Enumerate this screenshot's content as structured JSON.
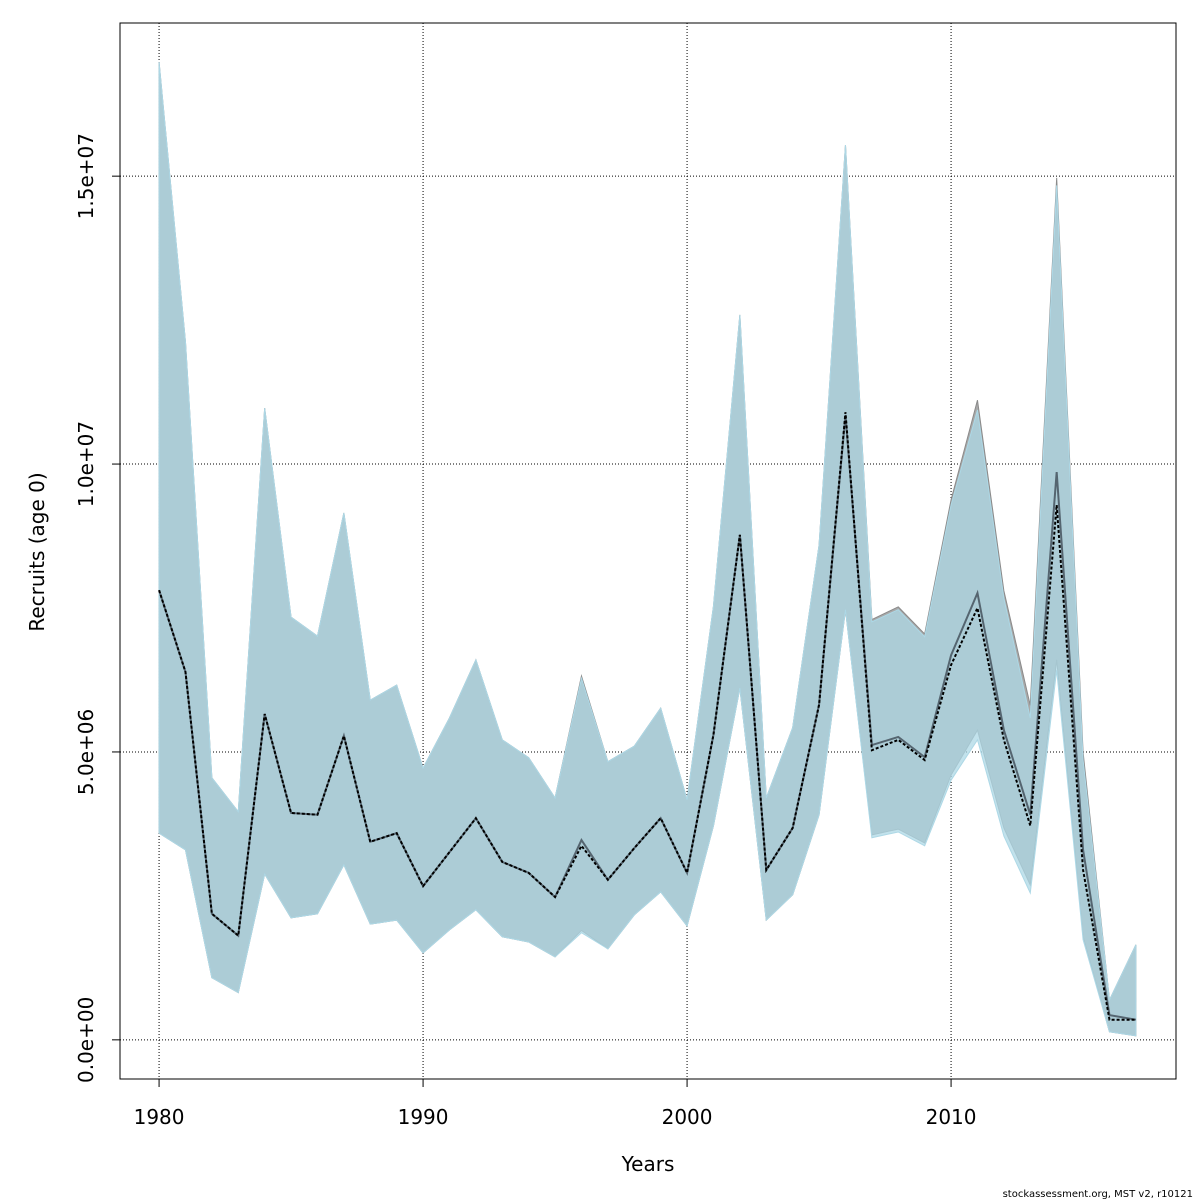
{
  "chart_data": {
    "type": "band-line",
    "xlabel": "Years",
    "ylabel": "Recruits (age 0)",
    "footer": "stockassessment.org, MST v2, r10121",
    "x": [
      1980,
      1981,
      1982,
      1983,
      1984,
      1985,
      1986,
      1987,
      1988,
      1989,
      1990,
      1991,
      1992,
      1993,
      1994,
      1995,
      1996,
      1997,
      1998,
      1999,
      2000,
      2001,
      2002,
      2003,
      2004,
      2005,
      2006,
      2007,
      2008,
      2009,
      2010,
      2011,
      2012,
      2013,
      2014,
      2015,
      2016,
      2017
    ],
    "xlim": [
      1978.52,
      2018.52
    ],
    "xticks": [
      1980,
      1990,
      2000,
      2010
    ],
    "ylim": [
      -680000,
      17660000
    ],
    "yticks": [
      {
        "value": 0,
        "label": "0.0e+00"
      },
      {
        "value": 5000000,
        "label": "5.0e+06"
      },
      {
        "value": 10000000,
        "label": "1.0e+07"
      },
      {
        "value": 15000000,
        "label": "1.5e+07"
      }
    ],
    "grid": true,
    "series": [
      {
        "color": "#a9a9a9",
        "line_color": "#556570",
        "line_style": "solid",
        "values": [
          7810000,
          6390000,
          2190000,
          1810000,
          5660000,
          3940000,
          3910000,
          5280000,
          3440000,
          3590000,
          2670000,
          3260000,
          3850000,
          3090000,
          2900000,
          2480000,
          3470000,
          2780000,
          3330000,
          3850000,
          2900000,
          5300000,
          8770000,
          2950000,
          3680000,
          5820000,
          10850000,
          5120000,
          5260000,
          4910000,
          6680000,
          7760000,
          5380000,
          3910000,
          9860000,
          3300000,
          430000,
          350000
        ],
        "upper": [
          16980000,
          12120000,
          4550000,
          3960000,
          10970000,
          7340000,
          7010000,
          9150000,
          5900000,
          6160000,
          4720000,
          5590000,
          6600000,
          5210000,
          4900000,
          4200000,
          6320000,
          4830000,
          5100000,
          5760000,
          4170000,
          7530000,
          12590000,
          4200000,
          5420000,
          8590000,
          15540000,
          7300000,
          7520000,
          7050000,
          9380000,
          11110000,
          7800000,
          5810000,
          14970000,
          5000000,
          690000,
          1650000
        ],
        "lower": [
          3590000,
          3300000,
          1080000,
          820000,
          2880000,
          2120000,
          2190000,
          3040000,
          2010000,
          2080000,
          1510000,
          1910000,
          2260000,
          1790000,
          1700000,
          1440000,
          1900000,
          1580000,
          2170000,
          2570000,
          1980000,
          3720000,
          6110000,
          2080000,
          2520000,
          3910000,
          7470000,
          3560000,
          3660000,
          3420000,
          4600000,
          5380000,
          3680000,
          2690000,
          6600000,
          1800000,
          140000,
          70000
        ]
      },
      {
        "color": "#add8e6",
        "line_color": "#000000",
        "line_style": "dotted",
        "values": [
          7810000,
          6390000,
          2190000,
          1810000,
          5660000,
          3940000,
          3910000,
          5280000,
          3440000,
          3590000,
          2670000,
          3260000,
          3850000,
          3090000,
          2900000,
          2480000,
          3370000,
          2780000,
          3330000,
          3850000,
          2900000,
          5300000,
          8770000,
          2950000,
          3680000,
          5820000,
          10900000,
          5030000,
          5210000,
          4860000,
          6510000,
          7500000,
          5210000,
          3720000,
          9290000,
          2950000,
          350000,
          350000
        ],
        "upper": [
          16980000,
          12120000,
          4550000,
          3960000,
          10970000,
          7340000,
          7010000,
          9150000,
          5900000,
          6160000,
          4720000,
          5590000,
          6600000,
          5210000,
          4900000,
          4200000,
          6280000,
          4830000,
          5100000,
          5760000,
          4170000,
          7530000,
          12590000,
          4200000,
          5420000,
          8590000,
          15540000,
          7260000,
          7470000,
          7000000,
          9290000,
          10940000,
          7670000,
          5590000,
          14840000,
          4860000,
          690000,
          1650000
        ],
        "lower": [
          3590000,
          3300000,
          1080000,
          820000,
          2880000,
          2120000,
          2190000,
          3040000,
          2010000,
          2080000,
          1510000,
          1910000,
          2260000,
          1790000,
          1700000,
          1440000,
          1860000,
          1580000,
          2170000,
          2570000,
          1980000,
          3720000,
          6110000,
          2080000,
          2520000,
          3910000,
          7470000,
          3510000,
          3610000,
          3370000,
          4510000,
          5210000,
          3540000,
          2550000,
          6420000,
          1740000,
          140000,
          70000
        ]
      }
    ]
  }
}
